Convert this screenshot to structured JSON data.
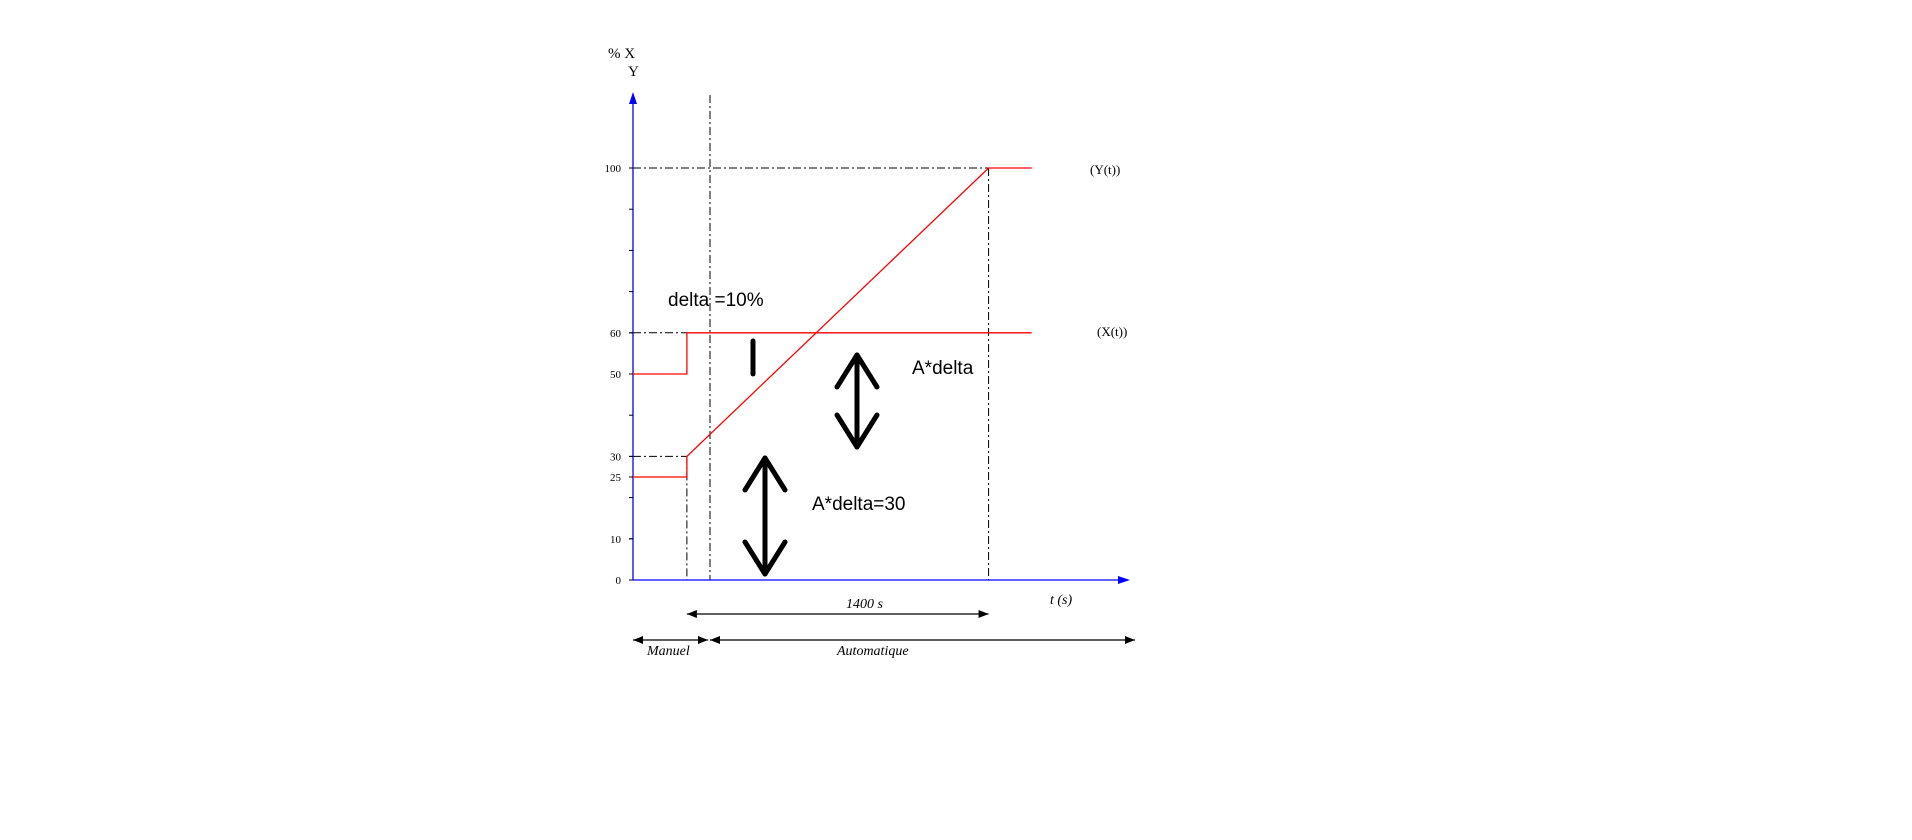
{
  "chart_data": {
    "type": "line",
    "ylabel_line1": "% X",
    "ylabel_line2": "Y",
    "xlabel": "t (s)",
    "y_ticks": [
      0,
      10,
      25,
      30,
      50,
      60,
      100
    ],
    "ylim": [
      0,
      110
    ],
    "series": [
      {
        "name": "(Y(t))",
        "points": [
          [
            0,
            25
          ],
          [
            250,
            25
          ],
          [
            250,
            30
          ],
          [
            1650,
            100
          ],
          [
            1850,
            100
          ]
        ]
      },
      {
        "name": "(X(t))",
        "points": [
          [
            0,
            50
          ],
          [
            250,
            50
          ],
          [
            250,
            60
          ],
          [
            1850,
            60
          ]
        ]
      }
    ],
    "annotations": {
      "delta": "delta =10%",
      "a_delta": "A*delta",
      "a_delta_30": "A*delta=30",
      "duration": "1400 s",
      "manuel": "Manuel",
      "automatique": "Automatique"
    },
    "colors": {
      "series": "#ff0000",
      "axis": "#0000ff",
      "ink": "#000000"
    }
  }
}
